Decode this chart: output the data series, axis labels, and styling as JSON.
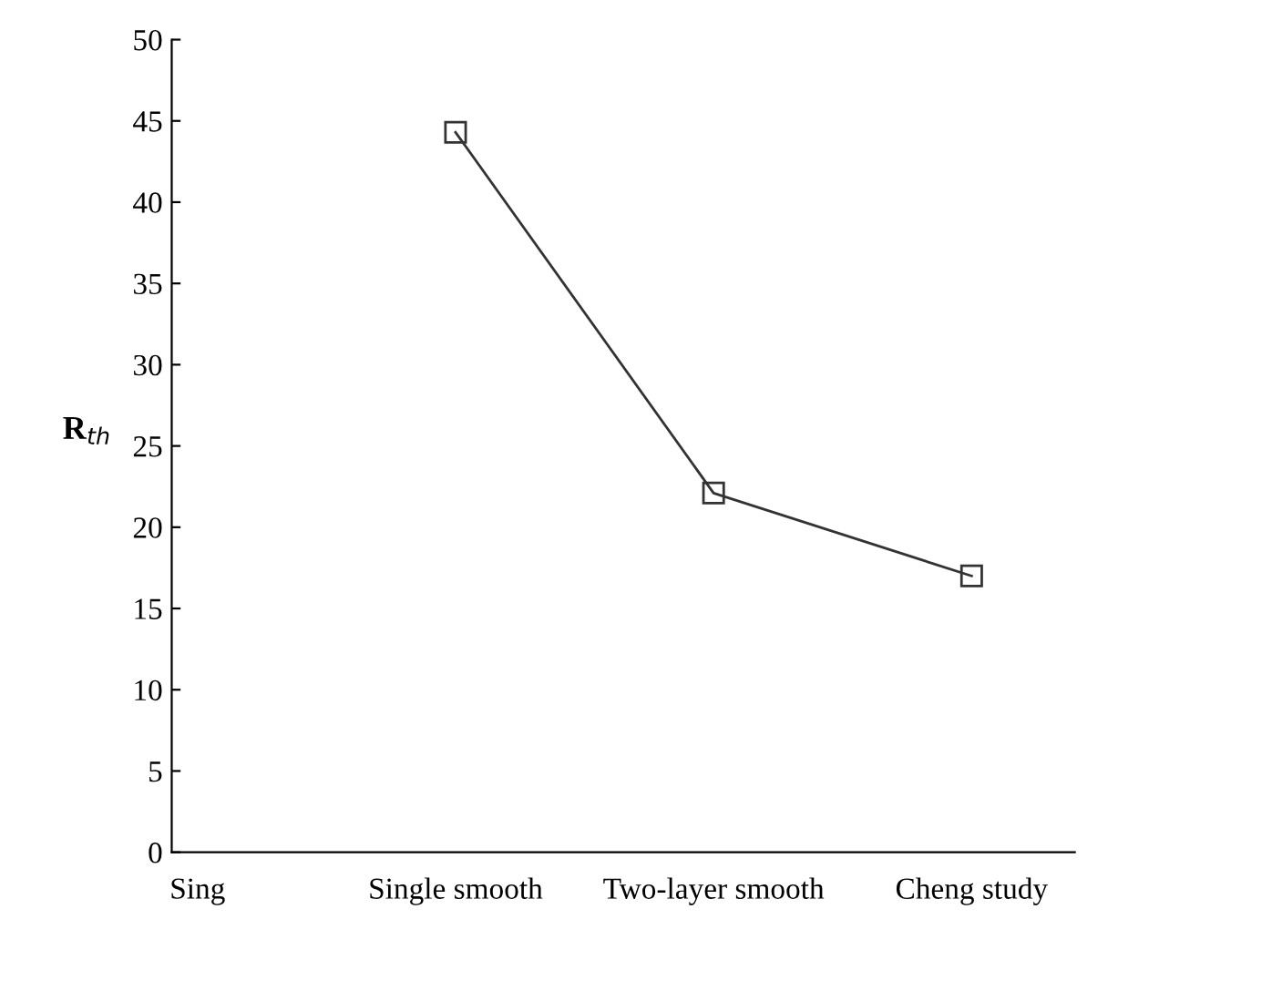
{
  "chart_data": {
    "type": "line",
    "ylabel": "R$_{th}$",
    "categories": [
      "Sing",
      "Single smooth",
      "Two-layer smooth",
      "Cheng study"
    ],
    "series": [
      {
        "color": "#333333",
        "values": [
          null,
          44.3,
          22.1,
          17.0
        ]
      }
    ],
    "ylim": [
      0,
      50
    ],
    "yticks": [
      0,
      5,
      10,
      15,
      20,
      25,
      30,
      35,
      40,
      45,
      50
    ],
    "marker": "square",
    "line_style": "solid",
    "grid": false,
    "legend": false
  }
}
